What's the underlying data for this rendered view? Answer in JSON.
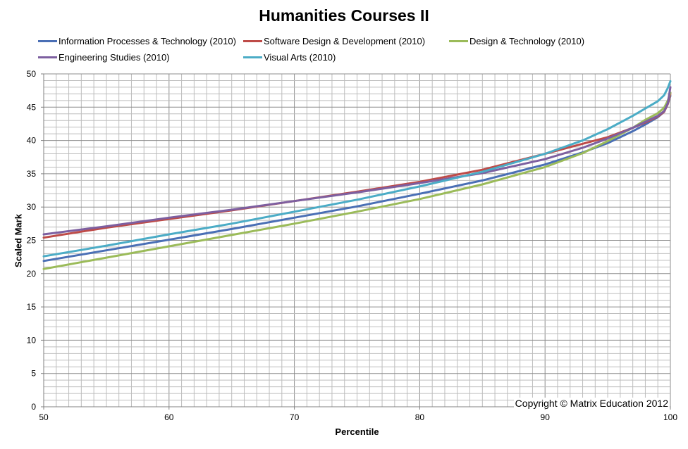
{
  "chart_data": {
    "type": "line",
    "title": "Humanities Courses II",
    "xlabel": "Percentile",
    "ylabel": "Scaled Mark",
    "xlim": [
      50,
      100
    ],
    "ylim": [
      0,
      50
    ],
    "x_ticks": [
      50,
      60,
      70,
      80,
      90,
      100
    ],
    "y_ticks": [
      0,
      5,
      10,
      15,
      20,
      25,
      30,
      35,
      40,
      45,
      50
    ],
    "grid": true,
    "legend_position": "top",
    "annotation": "Copyright © Matrix Education 2012",
    "series": [
      {
        "name": "Information Processes & Technology (2010)",
        "color": "#4a6fb5",
        "points": [
          [
            50,
            21.9
          ],
          [
            55,
            23.5
          ],
          [
            60,
            25.1
          ],
          [
            65,
            26.7
          ],
          [
            70,
            28.4
          ],
          [
            75,
            30.1
          ],
          [
            80,
            32.0
          ],
          [
            85,
            34.0
          ],
          [
            90,
            36.4
          ],
          [
            93,
            38.2
          ],
          [
            95,
            39.6
          ],
          [
            97,
            41.4
          ],
          [
            98,
            42.4
          ],
          [
            99,
            43.5
          ],
          [
            99.5,
            44.3
          ],
          [
            99.8,
            45.5
          ],
          [
            100,
            46.7
          ]
        ]
      },
      {
        "name": "Software Design & Development (2010)",
        "color": "#be4b48",
        "points": [
          [
            50,
            25.4
          ],
          [
            55,
            26.9
          ],
          [
            60,
            28.2
          ],
          [
            65,
            29.5
          ],
          [
            70,
            30.9
          ],
          [
            75,
            32.3
          ],
          [
            80,
            33.8
          ],
          [
            85,
            35.6
          ],
          [
            90,
            38.0
          ],
          [
            93,
            39.5
          ],
          [
            95,
            40.5
          ],
          [
            97,
            41.9
          ],
          [
            98,
            42.7
          ],
          [
            99,
            43.6
          ],
          [
            99.5,
            44.3
          ],
          [
            99.8,
            45.5
          ],
          [
            100,
            47.0
          ]
        ]
      },
      {
        "name": "Design & Technology (2010)",
        "color": "#9bbb59",
        "points": [
          [
            50,
            20.7
          ],
          [
            55,
            22.4
          ],
          [
            60,
            24.1
          ],
          [
            65,
            25.8
          ],
          [
            70,
            27.5
          ],
          [
            75,
            29.3
          ],
          [
            80,
            31.2
          ],
          [
            85,
            33.4
          ],
          [
            90,
            36.0
          ],
          [
            93,
            38.1
          ],
          [
            95,
            39.9
          ],
          [
            97,
            41.9
          ],
          [
            98,
            43.1
          ],
          [
            99,
            44.1
          ],
          [
            99.5,
            44.9
          ],
          [
            99.8,
            46.0
          ],
          [
            100,
            47.2
          ]
        ]
      },
      {
        "name": "Engineering Studies (2010)",
        "color": "#7d5fa0",
        "points": [
          [
            50,
            25.9
          ],
          [
            55,
            27.1
          ],
          [
            60,
            28.4
          ],
          [
            65,
            29.6
          ],
          [
            70,
            30.9
          ],
          [
            75,
            32.2
          ],
          [
            80,
            33.6
          ],
          [
            85,
            35.1
          ],
          [
            90,
            37.2
          ],
          [
            93,
            38.9
          ],
          [
            95,
            40.3
          ],
          [
            97,
            41.9
          ],
          [
            98,
            42.8
          ],
          [
            99,
            43.7
          ],
          [
            99.5,
            44.4
          ],
          [
            99.8,
            45.6
          ],
          [
            100,
            48.0
          ]
        ]
      },
      {
        "name": "Visual Arts (2010)",
        "color": "#4bacc6",
        "points": [
          [
            50,
            22.6
          ],
          [
            55,
            24.2
          ],
          [
            60,
            25.9
          ],
          [
            65,
            27.5
          ],
          [
            70,
            29.3
          ],
          [
            75,
            31.1
          ],
          [
            80,
            33.1
          ],
          [
            85,
            35.3
          ],
          [
            90,
            38.0
          ],
          [
            93,
            40.0
          ],
          [
            95,
            41.7
          ],
          [
            97,
            43.7
          ],
          [
            98,
            44.8
          ],
          [
            99,
            45.9
          ],
          [
            99.5,
            46.8
          ],
          [
            99.8,
            47.9
          ],
          [
            100,
            48.9
          ]
        ]
      }
    ]
  }
}
